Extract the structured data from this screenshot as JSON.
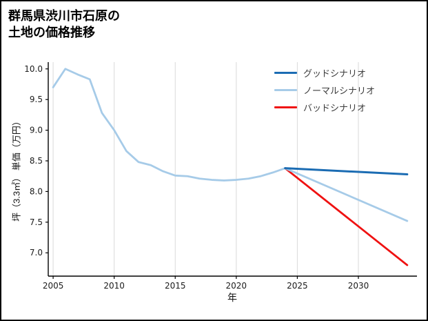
{
  "header": {
    "title_line1": "群馬県渋川市石原の",
    "title_line2": "土地の価格推移"
  },
  "chart_data": {
    "type": "line",
    "title": "群馬県渋川市石原の土地の価格推移",
    "xlabel": "年",
    "ylabel": "坪（3.3㎡） 単価（万円）",
    "xlim": [
      2004.6,
      2034.8
    ],
    "ylim": [
      6.62,
      10.11
    ],
    "xticks": [
      2005,
      2010,
      2015,
      2020,
      2025,
      2030
    ],
    "xtick_labels": [
      "2005",
      "2010",
      "2015",
      "2020",
      "2025",
      "2030"
    ],
    "yticks": [
      7.0,
      7.5,
      8.0,
      8.5,
      9.0,
      9.5,
      10.0
    ],
    "ytick_labels": [
      "7.0",
      "7.5",
      "8.0",
      "8.5",
      "9.0",
      "9.5",
      "10.0"
    ],
    "grid": "vertical-only",
    "grid_color": "#d9d9d9",
    "axis_color": "#000000",
    "legend_position": "upper-right-inside",
    "series": [
      {
        "id": "good",
        "name": "グッドシナリオ",
        "color": "#1b6cb3",
        "width": 3,
        "x": [
          2024,
          2034
        ],
        "y": [
          8.38,
          8.28
        ]
      },
      {
        "id": "normal",
        "name": "ノーマルシナリオ",
        "color": "#a6cbe8",
        "width": 2.8,
        "x": [
          2005,
          2006,
          2007,
          2008,
          2009,
          2010,
          2011,
          2012,
          2013,
          2014,
          2015,
          2016,
          2017,
          2018,
          2019,
          2020,
          2021,
          2022,
          2023,
          2024,
          2034
        ],
        "y": [
          9.7,
          10.0,
          9.91,
          9.83,
          9.28,
          9.0,
          8.66,
          8.48,
          8.43,
          8.33,
          8.26,
          8.25,
          8.21,
          8.19,
          8.18,
          8.19,
          8.21,
          8.25,
          8.31,
          8.38,
          7.52
        ]
      },
      {
        "id": "bad",
        "name": "バッドシナリオ",
        "color": "#ef1111",
        "width": 2.8,
        "x": [
          2024,
          2034
        ],
        "y": [
          8.38,
          6.8
        ]
      }
    ]
  }
}
